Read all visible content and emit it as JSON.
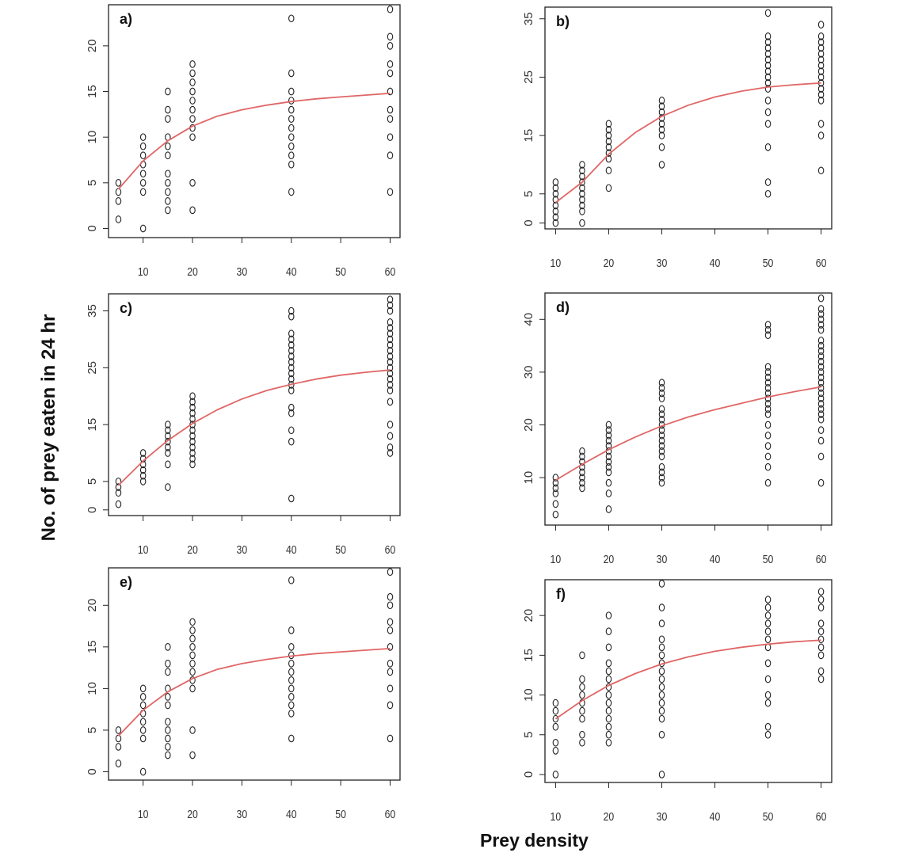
{
  "figure": {
    "ylabel": "No. of prey eaten in 24 hr",
    "xlabel": "Prey density",
    "curve_color": "#e06666",
    "point_color": "#222222"
  },
  "chart_data": [
    {
      "type": "scatter",
      "label": "a)",
      "xlim": [
        3,
        62
      ],
      "ylim": [
        -1,
        24.5
      ],
      "xticks": [
        10,
        20,
        30,
        40,
        50,
        60
      ],
      "yticks": [
        0,
        5,
        10,
        15,
        20
      ],
      "points": {
        "5": [
          1,
          3,
          4,
          5
        ],
        "10": [
          0,
          4,
          5,
          6,
          7,
          8,
          9,
          10
        ],
        "15": [
          2,
          3,
          4,
          5,
          6,
          8,
          9,
          10,
          12,
          13,
          15
        ],
        "20": [
          2,
          5,
          10,
          11,
          12,
          13,
          14,
          15,
          16,
          17,
          18
        ],
        "40": [
          4,
          7,
          8,
          9,
          10,
          11,
          12,
          13,
          14,
          15,
          17,
          23
        ],
        "60": [
          4,
          8,
          10,
          12,
          13,
          15,
          17,
          18,
          20,
          21,
          24
        ]
      },
      "curve": {
        "x": [
          5,
          10,
          15,
          20,
          25,
          30,
          35,
          40,
          45,
          50,
          55,
          60
        ],
        "y": [
          4.3,
          7.4,
          9.6,
          11.2,
          12.3,
          13.0,
          13.5,
          13.9,
          14.2,
          14.4,
          14.6,
          14.8
        ]
      }
    },
    {
      "type": "scatter",
      "label": "b)",
      "xlim": [
        8,
        62
      ],
      "ylim": [
        -1,
        37
      ],
      "xticks": [
        10,
        20,
        30,
        40,
        50,
        60
      ],
      "yticks": [
        0,
        5,
        15,
        25,
        35
      ],
      "points": {
        "10": [
          0,
          1,
          2,
          3,
          4,
          5,
          6,
          7
        ],
        "15": [
          0,
          2,
          3,
          4,
          5,
          6,
          7,
          8,
          9,
          10
        ],
        "20": [
          6,
          9,
          11,
          12,
          13,
          14,
          15,
          16,
          17
        ],
        "30": [
          10,
          13,
          15,
          16,
          17,
          18,
          19,
          20,
          21
        ],
        "50": [
          5,
          7,
          13,
          17,
          19,
          21,
          23,
          24,
          25,
          26,
          27,
          28,
          29,
          30,
          31,
          32,
          36
        ],
        "60": [
          9,
          15,
          17,
          21,
          22,
          23,
          24,
          25,
          26,
          27,
          28,
          29,
          30,
          31,
          32,
          34
        ]
      },
      "curve": {
        "x": [
          10,
          15,
          20,
          25,
          30,
          35,
          40,
          45,
          50,
          55,
          60
        ],
        "y": [
          3.5,
          7.0,
          11.8,
          15.5,
          18.3,
          20.2,
          21.6,
          22.6,
          23.3,
          23.7,
          24.0
        ]
      }
    },
    {
      "type": "scatter",
      "label": "c)",
      "xlim": [
        3,
        62
      ],
      "ylim": [
        -1,
        38
      ],
      "xticks": [
        10,
        20,
        30,
        40,
        50,
        60
      ],
      "yticks": [
        0,
        5,
        15,
        25,
        35
      ],
      "points": {
        "5": [
          1,
          3,
          4,
          5
        ],
        "10": [
          5,
          6,
          7,
          8,
          9,
          10
        ],
        "15": [
          4,
          8,
          10,
          11,
          12,
          13,
          14,
          15
        ],
        "20": [
          8,
          9,
          10,
          11,
          12,
          13,
          14,
          15,
          16,
          17,
          18,
          19,
          20
        ],
        "40": [
          2,
          12,
          14,
          17,
          18,
          21,
          22,
          23,
          24,
          25,
          26,
          27,
          28,
          29,
          30,
          31,
          34,
          35
        ],
        "60": [
          10,
          11,
          13,
          15,
          19,
          21,
          22,
          23,
          24,
          25,
          26,
          27,
          28,
          29,
          30,
          31,
          32,
          33,
          35,
          36,
          37
        ]
      },
      "curve": {
        "x": [
          5,
          10,
          15,
          20,
          25,
          30,
          35,
          40,
          45,
          50,
          55,
          60
        ],
        "y": [
          4.3,
          8.6,
          12.2,
          15.2,
          17.6,
          19.5,
          21.0,
          22.1,
          23.0,
          23.7,
          24.2,
          24.6
        ]
      }
    },
    {
      "type": "scatter",
      "label": "d)",
      "xlim": [
        8,
        62
      ],
      "ylim": [
        1,
        45
      ],
      "xticks": [
        10,
        20,
        30,
        40,
        50,
        60
      ],
      "yticks": [
        10,
        20,
        30,
        40
      ],
      "points": {
        "10": [
          3,
          5,
          7,
          8,
          9,
          10
        ],
        "15": [
          8,
          9,
          10,
          11,
          12,
          13,
          14,
          15
        ],
        "20": [
          4,
          7,
          9,
          11,
          12,
          13,
          14,
          15,
          16,
          17,
          18,
          19,
          20
        ],
        "30": [
          9,
          10,
          11,
          12,
          14,
          15,
          16,
          17,
          18,
          19,
          20,
          21,
          22,
          23,
          25,
          26,
          27,
          28
        ],
        "50": [
          9,
          12,
          14,
          16,
          18,
          20,
          22,
          23,
          24,
          25,
          26,
          27,
          28,
          29,
          30,
          31,
          37,
          38,
          39
        ],
        "60": [
          9,
          14,
          17,
          19,
          21,
          22,
          23,
          24,
          25,
          26,
          27,
          28,
          29,
          30,
          31,
          32,
          33,
          34,
          35,
          36,
          38,
          39,
          40,
          41,
          42,
          44
        ]
      },
      "curve": {
        "x": [
          10,
          15,
          20,
          25,
          30,
          35,
          40,
          45,
          50,
          55,
          60
        ],
        "y": [
          9.5,
          12.5,
          15.3,
          17.7,
          19.8,
          21.5,
          22.9,
          24.1,
          25.3,
          26.3,
          27.2
        ]
      }
    },
    {
      "type": "scatter",
      "label": "e)",
      "xlim": [
        3,
        62
      ],
      "ylim": [
        -1,
        24.5
      ],
      "xticks": [
        10,
        20,
        30,
        40,
        50,
        60
      ],
      "yticks": [
        0,
        5,
        10,
        15,
        20
      ],
      "points": {
        "5": [
          1,
          3,
          4,
          5
        ],
        "10": [
          0,
          4,
          5,
          6,
          7,
          8,
          9,
          10
        ],
        "15": [
          2,
          3,
          4,
          5,
          6,
          8,
          9,
          10,
          12,
          13,
          15
        ],
        "20": [
          2,
          5,
          10,
          11,
          12,
          13,
          14,
          15,
          16,
          17,
          18
        ],
        "40": [
          4,
          7,
          8,
          9,
          10,
          11,
          12,
          13,
          14,
          15,
          17,
          23
        ],
        "60": [
          4,
          8,
          10,
          12,
          13,
          15,
          17,
          18,
          20,
          21,
          24
        ]
      },
      "curve": {
        "x": [
          5,
          10,
          15,
          20,
          25,
          30,
          35,
          40,
          45,
          50,
          55,
          60
        ],
        "y": [
          4.3,
          7.4,
          9.6,
          11.2,
          12.3,
          13.0,
          13.5,
          13.9,
          14.2,
          14.4,
          14.6,
          14.8
        ]
      }
    },
    {
      "type": "scatter",
      "label": "f)",
      "xlim": [
        8,
        62
      ],
      "ylim": [
        -1,
        24.5
      ],
      "xticks": [
        10,
        20,
        30,
        40,
        50,
        60
      ],
      "yticks": [
        0,
        5,
        10,
        15,
        20
      ],
      "points": {
        "10": [
          0,
          3,
          4,
          6,
          7,
          8,
          9
        ],
        "15": [
          4,
          5,
          7,
          8,
          9,
          10,
          11,
          12,
          15
        ],
        "20": [
          4,
          5,
          6,
          7,
          8,
          9,
          10,
          11,
          12,
          13,
          14,
          16,
          18,
          20
        ],
        "30": [
          0,
          5,
          7,
          8,
          9,
          10,
          11,
          12,
          13,
          14,
          15,
          16,
          17,
          19,
          21,
          24
        ],
        "50": [
          5,
          6,
          9,
          10,
          12,
          14,
          16,
          17,
          18,
          19,
          20,
          21,
          22
        ],
        "60": [
          12,
          13,
          15,
          16,
          17,
          18,
          19,
          21,
          22,
          23
        ]
      },
      "curve": {
        "x": [
          10,
          15,
          20,
          25,
          30,
          35,
          40,
          45,
          50,
          55,
          60
        ],
        "y": [
          7.0,
          9.3,
          11.2,
          12.7,
          13.9,
          14.8,
          15.5,
          16.0,
          16.4,
          16.7,
          16.9
        ]
      }
    }
  ]
}
